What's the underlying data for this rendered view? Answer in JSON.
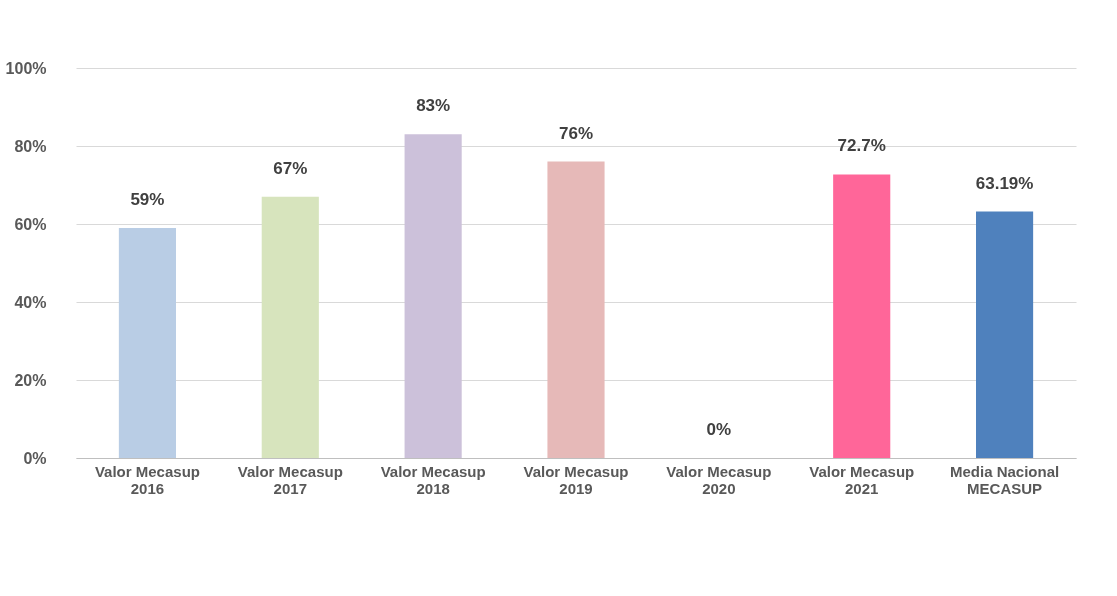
{
  "chart_data": {
    "type": "bar",
    "categories": [
      "Valor Mecasup 2016",
      "Valor Mecasup 2017",
      "Valor Mecasup 2018",
      "Valor Mecasup 2019",
      "Valor Mecasup 2020",
      "Valor Mecasup 2021",
      "Media Nacional MECASUP"
    ],
    "values": [
      59,
      67,
      83,
      76,
      0,
      72.7,
      63.19
    ],
    "colors": [
      "#b9cde5",
      "#d7e4bd",
      "#ccc1da",
      "#e6b9b8",
      "#ffffff",
      "#ff6699",
      "#4f81bd"
    ],
    "value_labels": [
      "59%",
      "67%",
      "83%",
      "76%",
      "0%",
      "72.7%",
      "63.19%"
    ],
    "ylim": [
      0,
      100
    ],
    "yticks": [
      {
        "value": 0,
        "label": "0%"
      },
      {
        "value": 20,
        "label": "20%"
      },
      {
        "value": 40,
        "label": "40%"
      },
      {
        "value": 60,
        "label": "60%"
      },
      {
        "value": 80,
        "label": "80%"
      },
      {
        "value": 100,
        "label": "100%"
      }
    ],
    "grid": "y"
  }
}
